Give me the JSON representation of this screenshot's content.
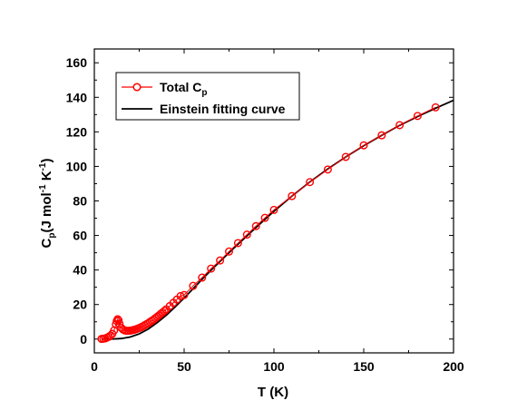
{
  "chart_data": {
    "type": "scatter",
    "xlabel": "T (K)",
    "ylabel_main": "C",
    "ylabel_sub": "p",
    "ylabel_unit_prefix": "(J mol",
    "ylabel_exp1": "-1",
    "ylabel_mid": " K",
    "ylabel_exp2": "-1",
    "ylabel_suffix": ")",
    "xlim": [
      0,
      200
    ],
    "ylim": [
      -8,
      168
    ],
    "xticks": [
      0,
      50,
      100,
      150,
      200
    ],
    "yticks": [
      0,
      20,
      40,
      60,
      80,
      100,
      120,
      140,
      160
    ],
    "grid": false,
    "legend_position": "top-left",
    "series": [
      {
        "name_main": "Total C",
        "name_sub": "p",
        "style": "circles-line",
        "color": "#ff0000",
        "points": [
          [
            4,
            0.1
          ],
          [
            5,
            0.2
          ],
          [
            6,
            0.4
          ],
          [
            7,
            0.8
          ],
          [
            8,
            1.3
          ],
          [
            9,
            2.0
          ],
          [
            10,
            3.0
          ],
          [
            11,
            5.0
          ],
          [
            12,
            8.5
          ],
          [
            12.5,
            10.5
          ],
          [
            13,
            11.5
          ],
          [
            13.5,
            10.8
          ],
          [
            14,
            8.8
          ],
          [
            15,
            6.5
          ],
          [
            16,
            5.5
          ],
          [
            17,
            5.0
          ],
          [
            18,
            4.8
          ],
          [
            19,
            4.8
          ],
          [
            20,
            4.9
          ],
          [
            21,
            5.1
          ],
          [
            22,
            5.3
          ],
          [
            23,
            5.6
          ],
          [
            24,
            6.0
          ],
          [
            25,
            6.4
          ],
          [
            26,
            6.9
          ],
          [
            27,
            7.4
          ],
          [
            28,
            8.0
          ],
          [
            29,
            8.6
          ],
          [
            30,
            9.2
          ],
          [
            31,
            9.9
          ],
          [
            32,
            10.6
          ],
          [
            33,
            11.3
          ],
          [
            34,
            12.1
          ],
          [
            35,
            12.9
          ],
          [
            36,
            13.7
          ],
          [
            37,
            14.6
          ],
          [
            38,
            15.4
          ],
          [
            39,
            16.3
          ],
          [
            40,
            17.2
          ],
          [
            42,
            19.1
          ],
          [
            44,
            21.0
          ],
          [
            46,
            22.9
          ],
          [
            48,
            24.9
          ],
          [
            50,
            25.5
          ],
          [
            55,
            30.8
          ],
          [
            60,
            35.6
          ],
          [
            65,
            40.8
          ],
          [
            70,
            45.5
          ],
          [
            75,
            50.7
          ],
          [
            80,
            55.6
          ],
          [
            85,
            60.5
          ],
          [
            90,
            65.4
          ],
          [
            95,
            70.2
          ],
          [
            100,
            74.8
          ],
          [
            110,
            82.8
          ],
          [
            120,
            90.9
          ],
          [
            130,
            98.2
          ],
          [
            140,
            105.5
          ],
          [
            150,
            112.2
          ],
          [
            160,
            118.0
          ],
          [
            170,
            123.9
          ],
          [
            180,
            129.2
          ],
          [
            190,
            134.2
          ]
        ]
      },
      {
        "name": "Einstein fitting curve",
        "style": "line",
        "color": "#000000",
        "points": [
          [
            4,
            0
          ],
          [
            10,
            0
          ],
          [
            15,
            0.3
          ],
          [
            20,
            1.2
          ],
          [
            25,
            3.0
          ],
          [
            30,
            5.8
          ],
          [
            35,
            9.5
          ],
          [
            40,
            13.8
          ],
          [
            45,
            18.6
          ],
          [
            50,
            23.8
          ],
          [
            55,
            29.2
          ],
          [
            60,
            34.6
          ],
          [
            65,
            39.9
          ],
          [
            70,
            45.0
          ],
          [
            75,
            50.0
          ],
          [
            80,
            54.9
          ],
          [
            85,
            59.8
          ],
          [
            90,
            64.6
          ],
          [
            95,
            69.3
          ],
          [
            100,
            74.0
          ],
          [
            110,
            82.8
          ],
          [
            120,
            91.0
          ],
          [
            130,
            98.5
          ],
          [
            140,
            105.5
          ],
          [
            150,
            112.0
          ],
          [
            160,
            118.0
          ],
          [
            170,
            123.8
          ],
          [
            180,
            128.9
          ],
          [
            190,
            133.7
          ],
          [
            200,
            138.3
          ]
        ]
      }
    ]
  }
}
